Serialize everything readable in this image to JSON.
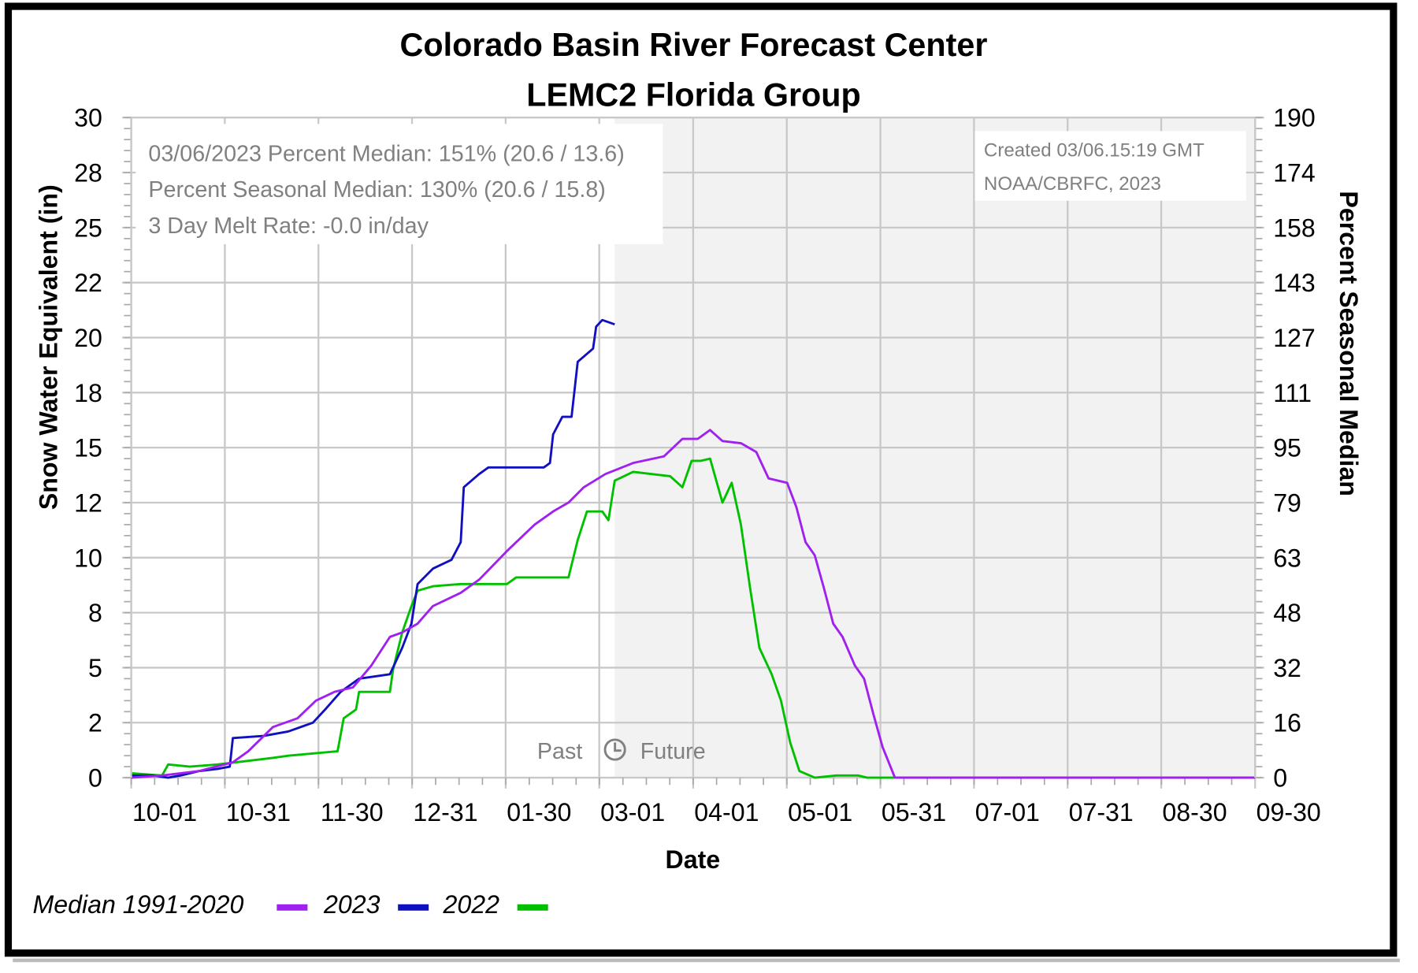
{
  "chart_data": {
    "type": "line",
    "title": "Colorado Basin River Forecast Center",
    "subtitle": "LEMC2 Florida  Group",
    "xlabel": "Date",
    "ylabel": "Snow Water Equivalent (in)",
    "y2label": "Percent Seasonal Median",
    "x_unit": "days since 10-01",
    "xlim": [
      0,
      365
    ],
    "ylim": [
      0,
      30
    ],
    "x_ticks": [
      {
        "day": 0,
        "label": "10-01"
      },
      {
        "day": 30.4,
        "label": "10-31"
      },
      {
        "day": 60.8,
        "label": "11-30"
      },
      {
        "day": 91.2,
        "label": "12-31"
      },
      {
        "day": 121.6,
        "label": "01-30"
      },
      {
        "day": 152,
        "label": "03-01"
      },
      {
        "day": 182.5,
        "label": "04-01"
      },
      {
        "day": 212.9,
        "label": "05-01"
      },
      {
        "day": 243.3,
        "label": "05-31"
      },
      {
        "day": 273.7,
        "label": "07-01"
      },
      {
        "day": 304.1,
        "label": "07-31"
      },
      {
        "day": 334.5,
        "label": "08-30"
      },
      {
        "day": 365,
        "label": "09-30"
      }
    ],
    "y_ticks": [
      {
        "value": 0,
        "label": "0"
      },
      {
        "value": 2.5,
        "label": "2"
      },
      {
        "value": 5,
        "label": "5"
      },
      {
        "value": 7.5,
        "label": "8"
      },
      {
        "value": 10,
        "label": "10"
      },
      {
        "value": 12.5,
        "label": "12"
      },
      {
        "value": 15,
        "label": "15"
      },
      {
        "value": 17.5,
        "label": "18"
      },
      {
        "value": 20,
        "label": "20"
      },
      {
        "value": 22.5,
        "label": "22"
      },
      {
        "value": 25,
        "label": "25"
      },
      {
        "value": 27.5,
        "label": "28"
      },
      {
        "value": 30,
        "label": "30"
      }
    ],
    "y2_ticks": [
      "0",
      "16",
      "32",
      "48",
      "63",
      "79",
      "95",
      "111",
      "127",
      "143",
      "158",
      "174",
      "190"
    ],
    "future_start_day": 157,
    "grid": true,
    "legend_position": "bottom-left",
    "series": [
      {
        "name": "Median 1991-2020",
        "color": "#a020f0",
        "x": [
          0,
          10,
          22,
          33,
          38,
          46,
          54,
          60,
          66,
          72,
          78,
          84,
          88,
          93,
          98,
          107,
          113,
          122,
          131,
          137,
          142,
          147,
          154,
          163,
          173,
          179,
          184,
          188,
          192,
          198,
          203,
          207,
          213,
          216,
          219,
          222,
          225,
          228,
          231,
          235,
          238,
          241,
          244,
          248,
          365
        ],
        "y": [
          0,
          0.1,
          0.3,
          0.7,
          1.2,
          2.3,
          2.7,
          3.5,
          3.9,
          4.1,
          5.1,
          6.4,
          6.6,
          7.0,
          7.8,
          8.4,
          9.0,
          10.3,
          11.5,
          12.1,
          12.5,
          13.2,
          13.8,
          14.3,
          14.6,
          15.4,
          15.4,
          15.8,
          15.3,
          15.2,
          14.8,
          13.6,
          13.4,
          12.3,
          10.7,
          10.1,
          8.6,
          7.0,
          6.4,
          5.1,
          4.5,
          2.9,
          1.4,
          0,
          0
        ]
      },
      {
        "name": "2023",
        "color": "#1010c0",
        "x": [
          0,
          7,
          12,
          16,
          22,
          28,
          32,
          33,
          43,
          51,
          59,
          63,
          68,
          74,
          84,
          88,
          91,
          93,
          98,
          104,
          107,
          108,
          113,
          116,
          125,
          134,
          136,
          137,
          140,
          143,
          145,
          150,
          151,
          153,
          157
        ],
        "y": [
          0.1,
          0.1,
          0,
          0.1,
          0.3,
          0.4,
          0.5,
          1.8,
          1.9,
          2.1,
          2.5,
          3.1,
          3.9,
          4.5,
          4.7,
          5.9,
          7.0,
          8.8,
          9.5,
          9.9,
          10.7,
          13.2,
          13.8,
          14.1,
          14.1,
          14.1,
          14.3,
          15.6,
          16.4,
          16.4,
          18.9,
          19.5,
          20.5,
          20.8,
          20.6
        ]
      },
      {
        "name": "2022",
        "color": "#00c000",
        "x": [
          0,
          10,
          12,
          19,
          28,
          34,
          46,
          51,
          67,
          69,
          73,
          74,
          84,
          85,
          88,
          91,
          93,
          98,
          107,
          122,
          125,
          142,
          145,
          148,
          153,
          155,
          157,
          163,
          175,
          179,
          182,
          185,
          188,
          192,
          195,
          198,
          201,
          204,
          208,
          211,
          214,
          217,
          222,
          229,
          236,
          239,
          365
        ],
        "y": [
          0.2,
          0.1,
          0.6,
          0.5,
          0.6,
          0.7,
          0.9,
          1.0,
          1.2,
          2.7,
          3.1,
          3.9,
          3.9,
          4.9,
          6.6,
          7.8,
          8.5,
          8.7,
          8.8,
          8.8,
          9.1,
          9.1,
          10.8,
          12.1,
          12.1,
          11.7,
          13.5,
          13.9,
          13.7,
          13.2,
          14.4,
          14.4,
          14.5,
          12.5,
          13.4,
          11.5,
          8.6,
          5.9,
          4.7,
          3.5,
          1.6,
          0.3,
          0,
          0.1,
          0.1,
          0,
          0
        ]
      }
    ],
    "annotations": {
      "info_lines": [
        "03/06/2023 Percent Median: 151% (20.6 / 13.6)",
        "Percent Seasonal Median: 130% (20.6 / 15.8)",
        "3 Day Melt Rate: -0.0 in/day"
      ],
      "credit_lines": [
        "Created 03/06.15:19 GMT",
        "NOAA/CBRFC, 2023"
      ],
      "past_label": "Past",
      "future_label": "Future"
    }
  }
}
